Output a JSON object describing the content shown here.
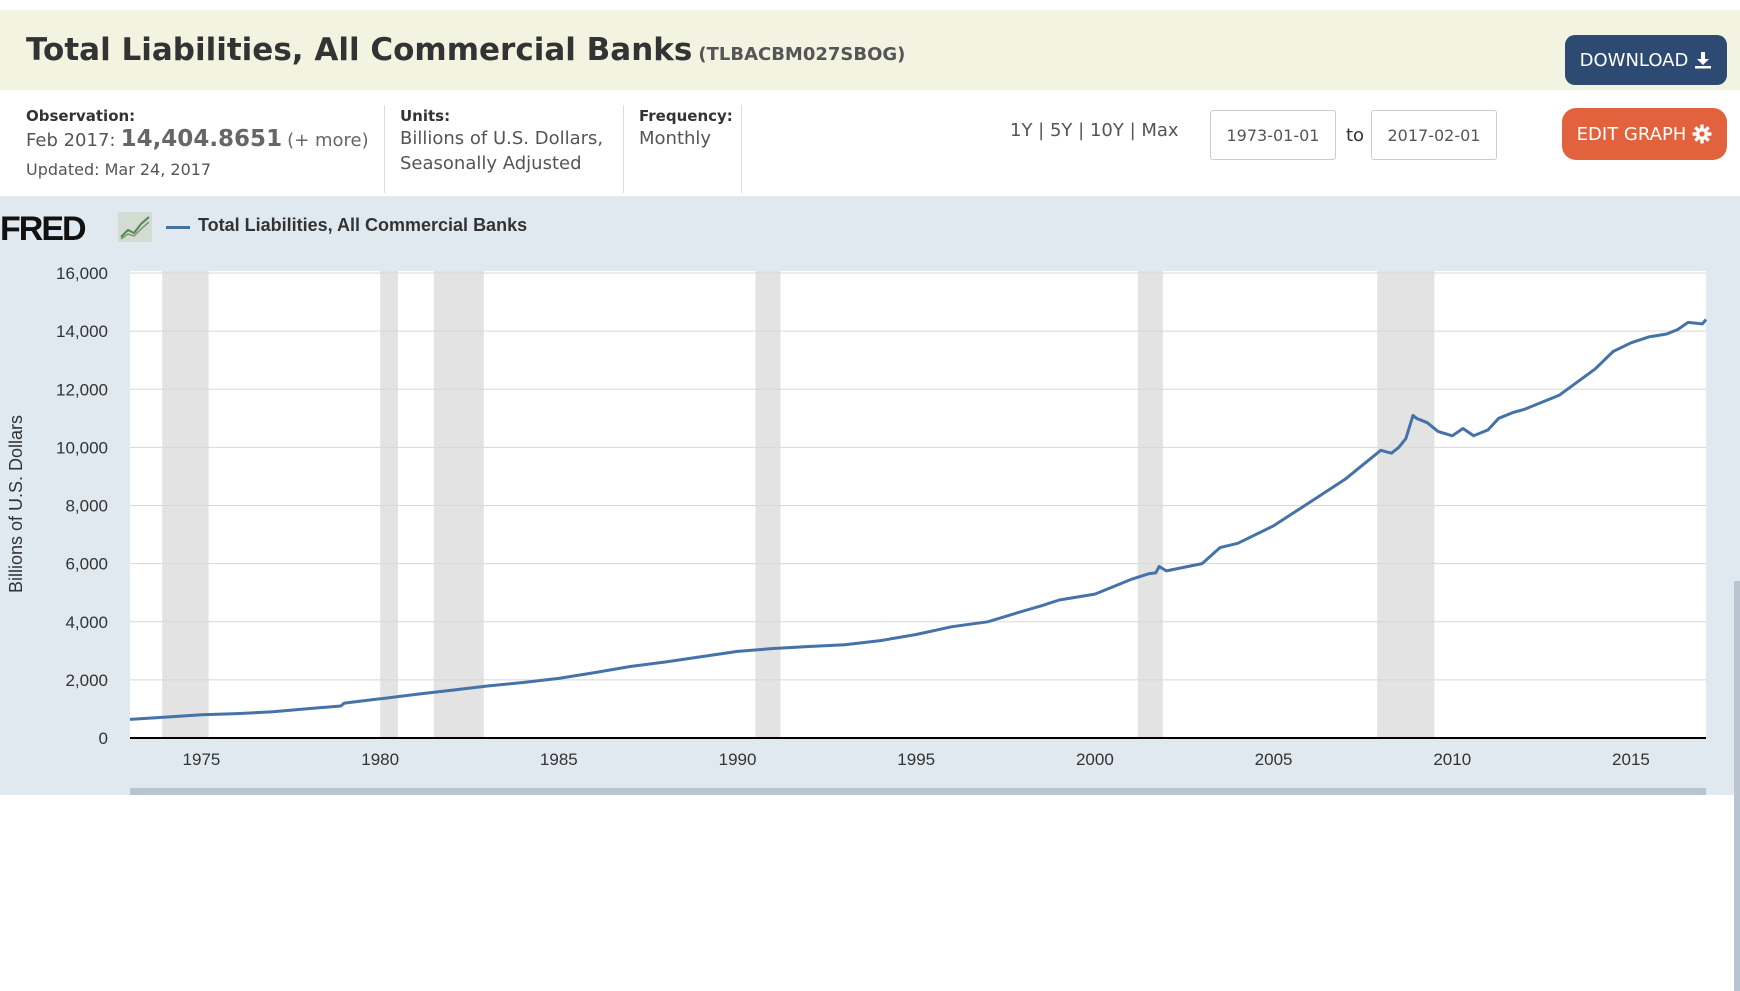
{
  "header": {
    "title": "Total Liabilities, All Commercial Banks",
    "series_id": "(TLBACBM027SBOG)",
    "download_label": "DOWNLOAD",
    "download_icon": "download-icon"
  },
  "meta": {
    "observation_label": "Observation:",
    "observation_date": "Feb 2017:",
    "observation_value": "14,404.8651",
    "observation_more": "(+ more)",
    "updated": "Updated: Mar 24, 2017",
    "units_label": "Units:",
    "units_line1": "Billions of U.S. Dollars,",
    "units_line2": "Seasonally Adjusted",
    "frequency_label": "Frequency:",
    "frequency_value": "Monthly"
  },
  "range": {
    "links": [
      "1Y",
      "5Y",
      "10Y",
      "Max"
    ],
    "start_date": "1973-01-01",
    "to_label": "to",
    "end_date": "2017-02-01"
  },
  "edit_label": "EDIT GRAPH",
  "edit_icon": "gear-icon",
  "legend": {
    "logo": "FRED",
    "series": "Total Liabilities, All Commercial Banks"
  },
  "chart_data": {
    "type": "line",
    "title": "",
    "xlabel": "",
    "ylabel": "Billions of U.S. Dollars",
    "xlim": [
      1973.0,
      2017.1
    ],
    "ylim": [
      0,
      16000
    ],
    "yticks": [
      0,
      2000,
      4000,
      6000,
      8000,
      10000,
      12000,
      14000,
      16000
    ],
    "ytick_labels": [
      "0",
      "2,000",
      "4,000",
      "6,000",
      "8,000",
      "10,000",
      "12,000",
      "14,000",
      "16,000"
    ],
    "xticks": [
      1975,
      1980,
      1985,
      1990,
      1995,
      2000,
      2005,
      2010,
      2015
    ],
    "xtick_labels": [
      "1975",
      "1980",
      "1985",
      "1990",
      "1995",
      "2000",
      "2005",
      "2010",
      "2015"
    ],
    "grid": true,
    "legend_position": "top-left",
    "series_color": "#4572a7",
    "recession_color": "#e3e3e3",
    "recessions": [
      [
        1973.9,
        1975.2
      ],
      [
        1980.0,
        1980.5
      ],
      [
        1981.5,
        1982.9
      ],
      [
        1990.5,
        1991.2
      ],
      [
        2001.2,
        2001.9
      ],
      [
        2007.9,
        2009.5
      ]
    ],
    "series": [
      {
        "name": "Total Liabilities, All Commercial Banks",
        "x": [
          1973.0,
          1974.0,
          1975.0,
          1976.0,
          1977.0,
          1978.0,
          1978.9,
          1979.0,
          1980.0,
          1981.0,
          1982.0,
          1983.0,
          1984.0,
          1985.0,
          1986.0,
          1987.0,
          1988.0,
          1989.0,
          1990.0,
          1991.0,
          1992.0,
          1993.0,
          1994.0,
          1995.0,
          1996.0,
          1997.0,
          1998.0,
          1998.5,
          1999.0,
          2000.0,
          2000.5,
          2001.0,
          2001.5,
          2001.7,
          2001.8,
          2002.0,
          2003.0,
          2003.5,
          2004.0,
          2005.0,
          2006.0,
          2007.0,
          2007.5,
          2008.0,
          2008.3,
          2008.5,
          2008.7,
          2008.9,
          2009.0,
          2009.3,
          2009.6,
          2010.0,
          2010.3,
          2010.6,
          2011.0,
          2011.3,
          2011.7,
          2012.0,
          2013.0,
          2014.0,
          2014.5,
          2015.0,
          2015.5,
          2016.0,
          2016.3,
          2016.6,
          2017.0,
          2017.1
        ],
        "values": [
          640,
          720,
          800,
          840,
          900,
          1010,
          1100,
          1200,
          1350,
          1500,
          1640,
          1790,
          1910,
          2050,
          2250,
          2460,
          2620,
          2800,
          2980,
          3080,
          3150,
          3210,
          3350,
          3560,
          3830,
          4000,
          4370,
          4550,
          4750,
          4950,
          5200,
          5450,
          5650,
          5680,
          5900,
          5750,
          6000,
          6550,
          6700,
          7300,
          8100,
          8900,
          9400,
          9900,
          9800,
          10000,
          10300,
          11100,
          11000,
          10850,
          10550,
          10400,
          10650,
          10400,
          10600,
          11000,
          11200,
          11300,
          11800,
          12700,
          13300,
          13600,
          13800,
          13900,
          14050,
          14300,
          14250,
          14400
        ]
      }
    ]
  }
}
